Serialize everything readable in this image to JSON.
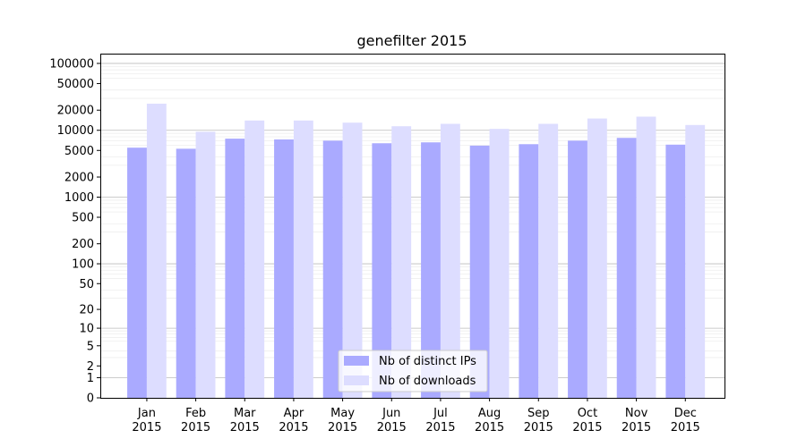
{
  "chart_data": {
    "type": "bar",
    "title": "genefilter 2015",
    "xlabel": "",
    "ylabel": "",
    "y_scale": "symlog",
    "ylim": [
      0,
      140000
    ],
    "y_ticks": [
      0,
      1,
      2,
      5,
      10,
      20,
      50,
      100,
      200,
      500,
      1000,
      2000,
      5000,
      10000,
      20000,
      50000,
      100000
    ],
    "categories": [
      [
        "Jan",
        "2015"
      ],
      [
        "Feb",
        "2015"
      ],
      [
        "Mar",
        "2015"
      ],
      [
        "Apr",
        "2015"
      ],
      [
        "May",
        "2015"
      ],
      [
        "Jun",
        "2015"
      ],
      [
        "Jul",
        "2015"
      ],
      [
        "Aug",
        "2015"
      ],
      [
        "Sep",
        "2015"
      ],
      [
        "Oct",
        "2015"
      ],
      [
        "Nov",
        "2015"
      ],
      [
        "Dec",
        "2015"
      ]
    ],
    "series": [
      {
        "name": "Nb of distinct IPs",
        "color": "#aaaaff",
        "values": [
          5500,
          5300,
          7500,
          7300,
          7000,
          6400,
          6600,
          5900,
          6200,
          7000,
          7700,
          6100
        ]
      },
      {
        "name": "Nb of downloads",
        "color": "#ddddff",
        "values": [
          25000,
          9500,
          14000,
          14000,
          13000,
          11500,
          12500,
          10500,
          12500,
          15000,
          16000,
          12000
        ]
      }
    ],
    "grid": true,
    "legend_position": "bottom-center"
  }
}
